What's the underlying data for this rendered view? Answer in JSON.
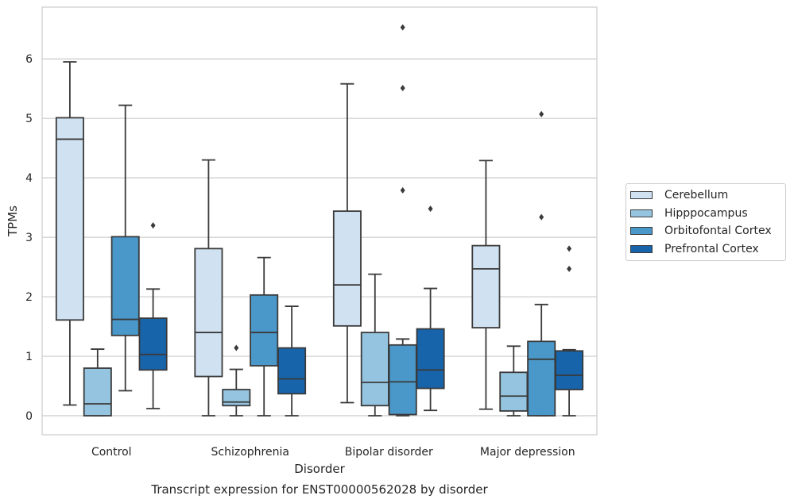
{
  "chart_data": {
    "type": "box",
    "title": "Transcript expression for ENST00000562028 by disorder",
    "xlabel": "Disorder",
    "ylabel": "TPMs",
    "ylim": [
      -0.32,
      6.87
    ],
    "yticks": [
      0,
      1,
      2,
      3,
      4,
      5,
      6
    ],
    "grid": true,
    "legend_position": "right",
    "categories": [
      "Control",
      "Schizophrenia",
      "Bipolar disorder",
      "Major depression"
    ],
    "series": [
      {
        "name": "Cerebellum",
        "color": "#d0e1f2",
        "boxes": [
          {
            "whislo": 0.18,
            "q1": 1.61,
            "med": 4.65,
            "q3": 5.01,
            "whishi": 5.95,
            "fliers": []
          },
          {
            "whislo": 0.0,
            "q1": 0.66,
            "med": 1.4,
            "q3": 2.81,
            "whishi": 4.3,
            "fliers": []
          },
          {
            "whislo": 0.22,
            "q1": 1.51,
            "med": 2.2,
            "q3": 3.44,
            "whishi": 5.58,
            "fliers": []
          },
          {
            "whislo": 0.11,
            "q1": 1.48,
            "med": 2.47,
            "q3": 2.86,
            "whishi": 4.29,
            "fliers": []
          }
        ]
      },
      {
        "name": "Hipppocampus",
        "color": "#94c4df",
        "boxes": [
          {
            "whislo": 0.0,
            "q1": 0.0,
            "med": 0.2,
            "q3": 0.8,
            "whishi": 1.12,
            "fliers": []
          },
          {
            "whislo": 0.0,
            "q1": 0.17,
            "med": 0.23,
            "q3": 0.44,
            "whishi": 0.78,
            "fliers": [
              1.14
            ]
          },
          {
            "whislo": 0.0,
            "q1": 0.17,
            "med": 0.56,
            "q3": 1.4,
            "whishi": 2.38,
            "fliers": []
          },
          {
            "whislo": 0.0,
            "q1": 0.08,
            "med": 0.33,
            "q3": 0.73,
            "whishi": 1.17,
            "fliers": []
          }
        ]
      },
      {
        "name": "Orbitofontal Cortex",
        "color": "#4a98c9",
        "boxes": [
          {
            "whislo": 0.42,
            "q1": 1.35,
            "med": 1.62,
            "q3": 3.01,
            "whishi": 5.22,
            "fliers": []
          },
          {
            "whislo": 0.0,
            "q1": 0.84,
            "med": 1.4,
            "q3": 2.03,
            "whishi": 2.66,
            "fliers": []
          },
          {
            "whislo": 0.0,
            "q1": 0.02,
            "med": 0.57,
            "q3": 1.19,
            "whishi": 1.29,
            "fliers": [
              3.79,
              5.51,
              6.53
            ]
          },
          {
            "whislo": 0.0,
            "q1": 0.0,
            "med": 0.95,
            "q3": 1.25,
            "whishi": 1.87,
            "fliers": [
              3.34,
              5.07
            ]
          }
        ]
      },
      {
        "name": "Prefrontal Cortex",
        "color": "#1764ab",
        "boxes": [
          {
            "whislo": 0.12,
            "q1": 0.77,
            "med": 1.03,
            "q3": 1.64,
            "whishi": 2.13,
            "fliers": [
              3.2
            ]
          },
          {
            "whislo": 0.0,
            "q1": 0.37,
            "med": 0.62,
            "q3": 1.14,
            "whishi": 1.84,
            "fliers": []
          },
          {
            "whislo": 0.09,
            "q1": 0.46,
            "med": 0.77,
            "q3": 1.46,
            "whishi": 2.14,
            "fliers": [
              3.48
            ]
          },
          {
            "whislo": 0.0,
            "q1": 0.44,
            "med": 0.68,
            "q3": 1.09,
            "whishi": 1.11,
            "fliers": [
              2.47,
              2.81
            ]
          }
        ]
      }
    ]
  }
}
